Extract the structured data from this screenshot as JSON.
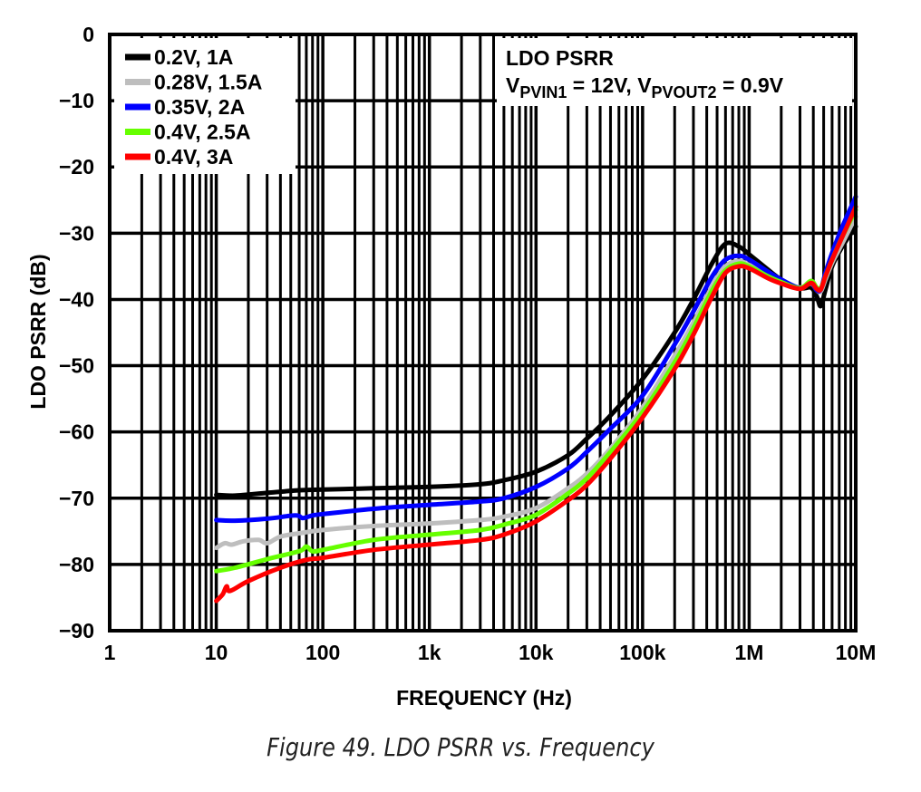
{
  "chart_data": {
    "type": "line",
    "title": "LDO PSRR vs. Frequency",
    "caption": "Figure 49. LDO PSRR vs. Frequency",
    "xlabel": "FREQUENCY (Hz)",
    "ylabel": "LDO PSRR (dB)",
    "xscale": "log",
    "xlim": [
      1,
      10000000
    ],
    "ylim": [
      -90,
      0
    ],
    "grid": true,
    "x_ticks": [
      {
        "value": 1,
        "label": "1"
      },
      {
        "value": 10,
        "label": "10"
      },
      {
        "value": 100,
        "label": "100"
      },
      {
        "value": 1000,
        "label": "1k"
      },
      {
        "value": 10000,
        "label": "10k"
      },
      {
        "value": 100000,
        "label": "100k"
      },
      {
        "value": 1000000,
        "label": "1M"
      },
      {
        "value": 10000000,
        "label": "10M"
      }
    ],
    "y_ticks": [
      {
        "value": 0,
        "label": "0"
      },
      {
        "value": -10,
        "label": "−10"
      },
      {
        "value": -20,
        "label": "−20"
      },
      {
        "value": -30,
        "label": "−30"
      },
      {
        "value": -40,
        "label": "−40"
      },
      {
        "value": -50,
        "label": "−50"
      },
      {
        "value": -60,
        "label": "−60"
      },
      {
        "value": -70,
        "label": "−70"
      },
      {
        "value": -80,
        "label": "−80"
      },
      {
        "value": -90,
        "label": "−90"
      }
    ],
    "legend_position": "top-left",
    "annotation": {
      "line1": "LDO PSRR",
      "v1_main": "V",
      "v1_sub": "PVIN1",
      "v1_rest": " = 12V, ",
      "v2_main": "V",
      "v2_sub": "PVOUT2",
      "v2_rest": " = 0.9V",
      "position": "top-right"
    },
    "series": [
      {
        "name": "0.2V, 1A",
        "color": "#000000",
        "points": [
          [
            10,
            -69.5
          ],
          [
            15,
            -69.6
          ],
          [
            30,
            -69.2
          ],
          [
            60,
            -68.8
          ],
          [
            100,
            -68.7
          ],
          [
            300,
            -68.5
          ],
          [
            1000,
            -68.3
          ],
          [
            3000,
            -67.9
          ],
          [
            5000,
            -67.3
          ],
          [
            10000,
            -66
          ],
          [
            20000,
            -63.5
          ],
          [
            30000,
            -61
          ],
          [
            50000,
            -57.5
          ],
          [
            100000,
            -52
          ],
          [
            200000,
            -45
          ],
          [
            300000,
            -40
          ],
          [
            450000,
            -34.5
          ],
          [
            600000,
            -31.6
          ],
          [
            800000,
            -32
          ],
          [
            1000000,
            -33.2
          ],
          [
            1500000,
            -35.5
          ],
          [
            2000000,
            -37
          ],
          [
            3000000,
            -38.3
          ],
          [
            3800000,
            -38.2
          ],
          [
            4300000,
            -39.5
          ],
          [
            4700000,
            -41
          ],
          [
            5200000,
            -38.5
          ],
          [
            6000000,
            -35
          ],
          [
            7500000,
            -32
          ],
          [
            10000000,
            -29
          ]
        ]
      },
      {
        "name": "0.28V, 1.5A",
        "color": "#bebebe",
        "points": [
          [
            10,
            -77.5
          ],
          [
            12,
            -76.8
          ],
          [
            14,
            -77
          ],
          [
            18,
            -76.5
          ],
          [
            25,
            -76.3
          ],
          [
            30,
            -76.8
          ],
          [
            40,
            -75.8
          ],
          [
            60,
            -75.3
          ],
          [
            100,
            -74.8
          ],
          [
            300,
            -74.2
          ],
          [
            1000,
            -73.8
          ],
          [
            3000,
            -73.3
          ],
          [
            5000,
            -72.8
          ],
          [
            10000,
            -71.5
          ],
          [
            20000,
            -68.5
          ],
          [
            30000,
            -66.3
          ],
          [
            50000,
            -62.5
          ],
          [
            100000,
            -56.3
          ],
          [
            200000,
            -48.5
          ],
          [
            300000,
            -43.5
          ],
          [
            450000,
            -38
          ],
          [
            600000,
            -35
          ],
          [
            800000,
            -34.2
          ],
          [
            1000000,
            -34.8
          ],
          [
            1500000,
            -36.2
          ],
          [
            2000000,
            -37.3
          ],
          [
            3000000,
            -38.2
          ],
          [
            3800000,
            -37.6
          ],
          [
            4300000,
            -38.6
          ],
          [
            4700000,
            -38.8
          ],
          [
            5200000,
            -37
          ],
          [
            6000000,
            -34.5
          ],
          [
            7500000,
            -31.5
          ],
          [
            10000000,
            -27.5
          ]
        ]
      },
      {
        "name": "0.35V, 2A",
        "color": "#0000ff",
        "points": [
          [
            10,
            -73.3
          ],
          [
            15,
            -73.4
          ],
          [
            30,
            -73.1
          ],
          [
            55,
            -72.6
          ],
          [
            65,
            -73
          ],
          [
            80,
            -72.6
          ],
          [
            100,
            -72.4
          ],
          [
            300,
            -71.6
          ],
          [
            1000,
            -71
          ],
          [
            3000,
            -70.5
          ],
          [
            5000,
            -70
          ],
          [
            10000,
            -68.3
          ],
          [
            20000,
            -65.5
          ],
          [
            30000,
            -63
          ],
          [
            50000,
            -59.5
          ],
          [
            100000,
            -54.5
          ],
          [
            200000,
            -46.8
          ],
          [
            300000,
            -41.8
          ],
          [
            450000,
            -36.5
          ],
          [
            600000,
            -34
          ],
          [
            800000,
            -33.4
          ],
          [
            1000000,
            -34
          ],
          [
            1500000,
            -35.8
          ],
          [
            2000000,
            -37
          ],
          [
            3000000,
            -38.3
          ],
          [
            3800000,
            -37.5
          ],
          [
            4300000,
            -38.6
          ],
          [
            4700000,
            -38.5
          ],
          [
            5200000,
            -36
          ],
          [
            6000000,
            -33
          ],
          [
            7500000,
            -29
          ],
          [
            10000000,
            -24.5
          ]
        ]
      },
      {
        "name": "0.4V, 2.5A",
        "color": "#66ff00",
        "points": [
          [
            10,
            -81
          ],
          [
            15,
            -80.5
          ],
          [
            30,
            -79.2
          ],
          [
            60,
            -78
          ],
          [
            70,
            -77.3
          ],
          [
            80,
            -78
          ],
          [
            100,
            -77.8
          ],
          [
            300,
            -76.3
          ],
          [
            1000,
            -75.5
          ],
          [
            3000,
            -74.8
          ],
          [
            5000,
            -74
          ],
          [
            10000,
            -72.5
          ],
          [
            20000,
            -69.3
          ],
          [
            30000,
            -67
          ],
          [
            50000,
            -63
          ],
          [
            100000,
            -57
          ],
          [
            200000,
            -49.5
          ],
          [
            300000,
            -44.3
          ],
          [
            450000,
            -38.6
          ],
          [
            600000,
            -35.6
          ],
          [
            800000,
            -34.6
          ],
          [
            1000000,
            -35
          ],
          [
            1500000,
            -36.5
          ],
          [
            2000000,
            -37.4
          ],
          [
            3000000,
            -38.3
          ],
          [
            3800000,
            -37.2
          ],
          [
            4300000,
            -38.2
          ],
          [
            4700000,
            -38.3
          ],
          [
            5200000,
            -36.5
          ],
          [
            6000000,
            -34
          ],
          [
            7500000,
            -30.5
          ],
          [
            10000000,
            -26.5
          ]
        ]
      },
      {
        "name": "0.4V, 3A",
        "color": "#ff0000",
        "points": [
          [
            10,
            -85.5
          ],
          [
            11.5,
            -84.5
          ],
          [
            12.5,
            -83.3
          ],
          [
            13.5,
            -84
          ],
          [
            20,
            -82.5
          ],
          [
            40,
            -80.5
          ],
          [
            70,
            -79.3
          ],
          [
            100,
            -79
          ],
          [
            300,
            -77.8
          ],
          [
            1000,
            -77
          ],
          [
            3000,
            -76.3
          ],
          [
            5000,
            -75.5
          ],
          [
            10000,
            -73.5
          ],
          [
            20000,
            -70.3
          ],
          [
            30000,
            -68
          ],
          [
            50000,
            -64
          ],
          [
            100000,
            -57.8
          ],
          [
            200000,
            -50.5
          ],
          [
            300000,
            -45.3
          ],
          [
            450000,
            -39.5
          ],
          [
            600000,
            -36
          ],
          [
            800000,
            -35
          ],
          [
            1000000,
            -35.3
          ],
          [
            1500000,
            -36.8
          ],
          [
            2000000,
            -37.6
          ],
          [
            3000000,
            -38.4
          ],
          [
            3800000,
            -37.5
          ],
          [
            4300000,
            -38.4
          ],
          [
            4700000,
            -38.5
          ],
          [
            5200000,
            -36.5
          ],
          [
            6000000,
            -34
          ],
          [
            7500000,
            -30.5
          ],
          [
            10000000,
            -26
          ]
        ]
      }
    ]
  }
}
